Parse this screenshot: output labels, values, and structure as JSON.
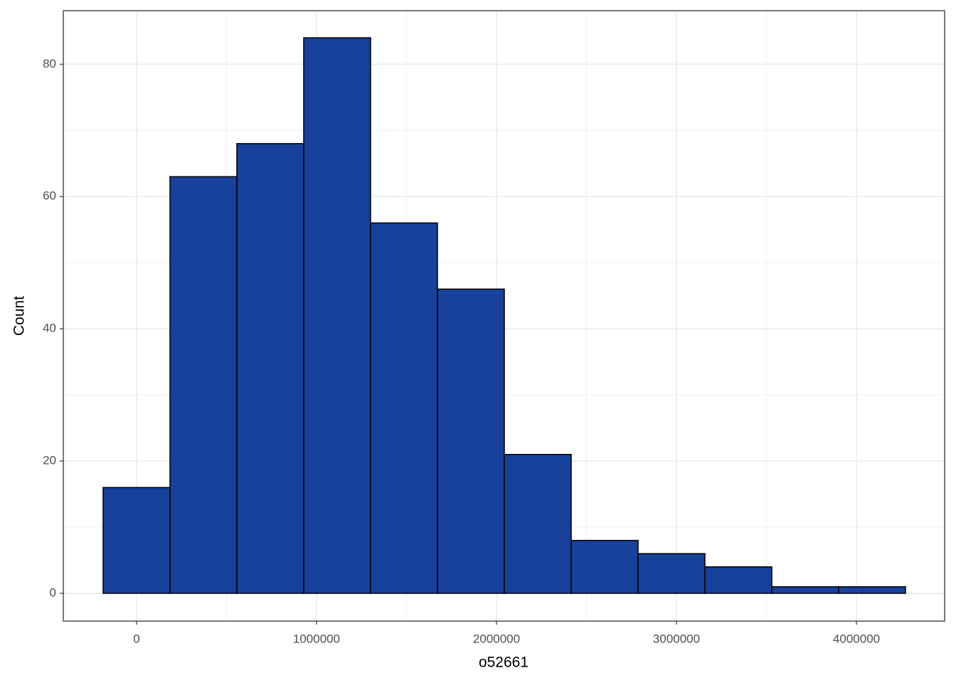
{
  "chart_data": {
    "type": "histogram",
    "x_label": "o52661",
    "y_label": "Count",
    "bins": [
      -185770,
      185771,
      557312,
      928853,
      1300394,
      1671935,
      2043476,
      2415017,
      2786558,
      3158099,
      3529640,
      3901181,
      4272722
    ],
    "values": [
      16,
      63,
      68,
      84,
      56,
      46,
      21,
      8,
      6,
      4,
      1,
      1
    ],
    "color": "#17419a",
    "edge_color": "#000000",
    "xlim": [
      -407000,
      4490000
    ],
    "ylim": [
      -4.2,
      88.1
    ],
    "xticks": [
      0,
      1000000,
      2000000,
      3000000,
      4000000
    ],
    "yticks": [
      0,
      20,
      40,
      60,
      80
    ],
    "minor_xticks": [
      500000,
      1500000,
      2500000,
      3500000
    ],
    "minor_yticks": [
      10,
      30,
      50,
      70
    ],
    "grid": true
  }
}
